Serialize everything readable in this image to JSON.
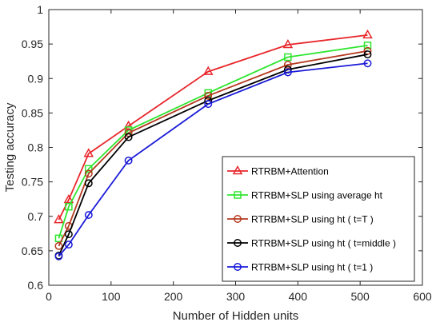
{
  "chart_data": {
    "type": "line",
    "title": "",
    "xlabel": "Number of Hidden units",
    "ylabel": "Testing accuracy",
    "xlim": [
      0,
      600
    ],
    "ylim": [
      0.6,
      1.0
    ],
    "xticks": [
      0,
      100,
      200,
      300,
      400,
      500,
      600
    ],
    "yticks": [
      0.6,
      0.65,
      0.7,
      0.75,
      0.8,
      0.85,
      0.9,
      0.95,
      1
    ],
    "grid": false,
    "legend_position": "bottom-right",
    "x": [
      16,
      32,
      64,
      128,
      256,
      384,
      512
    ],
    "series": [
      {
        "name": "RTRBM+Attention",
        "color": "#e8262b",
        "marker": "triangle",
        "values": [
          0.695,
          0.724,
          0.791,
          0.831,
          0.91,
          0.949,
          0.963
        ]
      },
      {
        "name": "RTRBM+SLP using average ht",
        "color": "#2ee62e",
        "marker": "square",
        "values": [
          0.668,
          0.714,
          0.769,
          0.825,
          0.879,
          0.931,
          0.948
        ]
      },
      {
        "name": "RTRBM+SLP using ht ( t=T )",
        "color": "#b5391f",
        "marker": "circle",
        "values": [
          0.657,
          0.686,
          0.762,
          0.821,
          0.875,
          0.92,
          0.94
        ]
      },
      {
        "name": "RTRBM+SLP using ht ( t=middle )",
        "color": "#000000",
        "marker": "circle",
        "values": [
          0.643,
          0.674,
          0.748,
          0.815,
          0.868,
          0.913,
          0.935
        ]
      },
      {
        "name": "RTRBM+SLP using ht ( t=1 )",
        "color": "#1a1ad9",
        "marker": "circle",
        "values": [
          0.642,
          0.659,
          0.702,
          0.781,
          0.863,
          0.909,
          0.922
        ]
      }
    ]
  }
}
